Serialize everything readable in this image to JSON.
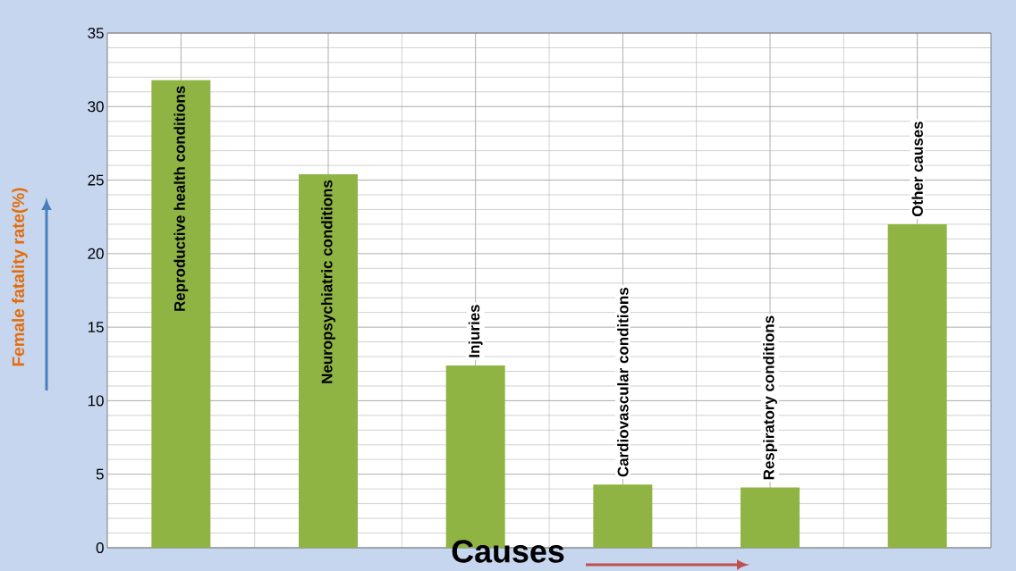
{
  "chart_data": {
    "type": "bar",
    "xlabel": "Causes",
    "ylabel": "Female fatality rate(%)",
    "categories": [
      "Reproductive health conditions",
      "Neuropsychiatric conditions",
      "Injuries",
      "Cardiovascular conditions",
      "Respiratory conditions",
      "Other causes"
    ],
    "values": [
      31.8,
      25.4,
      12.4,
      4.3,
      4.1,
      22.0
    ],
    "color": "#8fb443",
    "ylim": [
      0,
      35
    ],
    "yticks": [
      0,
      5,
      10,
      15,
      20,
      25,
      30,
      35
    ],
    "grid": true
  }
}
